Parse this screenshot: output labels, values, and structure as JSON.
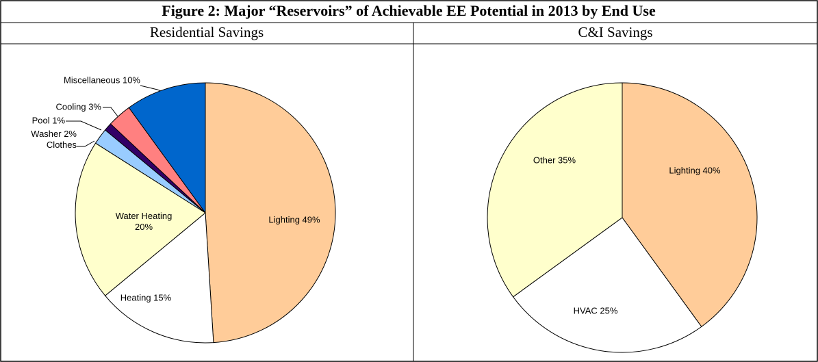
{
  "figure_title": "Figure 2: Major “Reservoirs” of Achievable EE Potential in 2013 by End Use",
  "chart_data": [
    {
      "type": "pie",
      "title": "Residential Savings",
      "categories": [
        "Lighting",
        "Heating",
        "Water Heating",
        "Clothes Washer",
        "Pool",
        "Cooling",
        "Miscellaneous"
      ],
      "values": [
        49,
        15,
        20,
        2,
        1,
        3,
        10
      ],
      "value_labels": [
        "Lighting 49%",
        "Heating 15%",
        "Water Heating\n20%",
        "Washer 2%\nClothes",
        "Pool 1%",
        "Cooling 3%",
        "Miscellaneous 10%"
      ],
      "colors": [
        "#ffcc99",
        "#ffffff",
        "#ffffcc",
        "#99ccff",
        "#330066",
        "#ff8080",
        "#0066cc"
      ]
    },
    {
      "type": "pie",
      "title": "C&I Savings",
      "categories": [
        "Lighting",
        "HVAC",
        "Other"
      ],
      "values": [
        40,
        25,
        35
      ],
      "value_labels": [
        "Lighting 40%",
        "HVAC 25%",
        "Other 35%"
      ],
      "colors": [
        "#ffcc99",
        "#ffffff",
        "#ffffcc"
      ]
    }
  ]
}
